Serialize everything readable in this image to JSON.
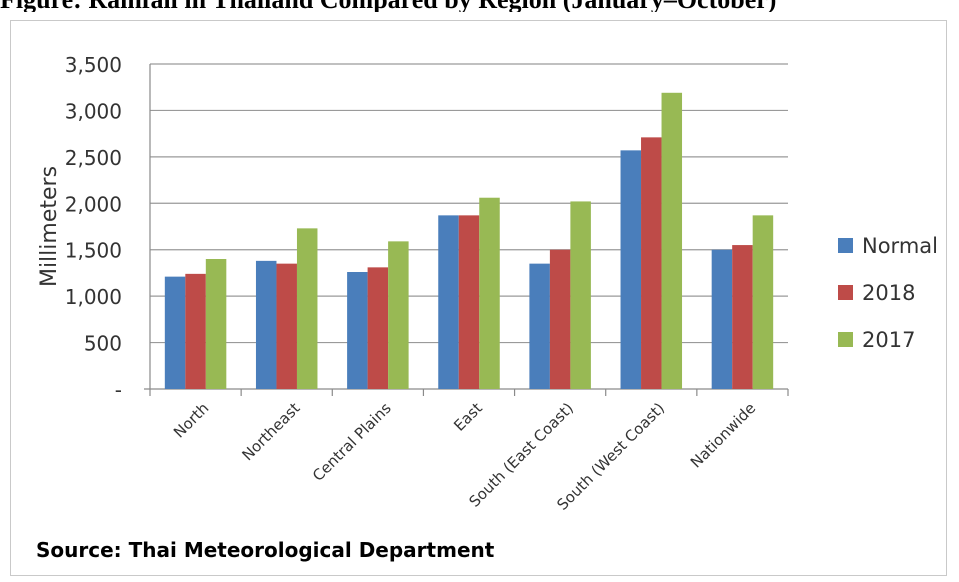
{
  "figure": {
    "title": "Figure: Rainfall in Thailand Compared by Region (January–October)",
    "source": "Source: Thai Meteorological Department"
  },
  "colors": {
    "normal": "#4a7ebb",
    "y2018": "#be4b48",
    "y2017": "#98b954",
    "gridline": "#9a9a9a",
    "axis": "#8a8a8a",
    "text": "#333333"
  },
  "chart_data": {
    "type": "bar",
    "title": "",
    "xlabel": "",
    "ylabel": "Millimeters",
    "ylim": [
      0,
      3500
    ],
    "yticks": [
      0,
      500,
      1000,
      1500,
      2000,
      2500,
      3000,
      3500
    ],
    "ytick_labels": [
      "-",
      "500",
      "1,000",
      "1,500",
      "2,000",
      "2,500",
      "3,000",
      "3,500"
    ],
    "grid": true,
    "legend_position": "right",
    "categories": [
      "North",
      "Northeast",
      "Central Plains",
      "East",
      "South (East Coast)",
      "South (West Coast)",
      "Nationwide"
    ],
    "series": [
      {
        "name": "Normal",
        "color_key": "normal",
        "values": [
          1210,
          1380,
          1260,
          1870,
          1350,
          2570,
          1500
        ]
      },
      {
        "name": "2018",
        "color_key": "y2018",
        "values": [
          1240,
          1350,
          1310,
          1870,
          1500,
          2710,
          1550
        ]
      },
      {
        "name": "2017",
        "color_key": "y2017",
        "values": [
          1400,
          1730,
          1590,
          2060,
          2020,
          3190,
          1870
        ]
      }
    ]
  }
}
